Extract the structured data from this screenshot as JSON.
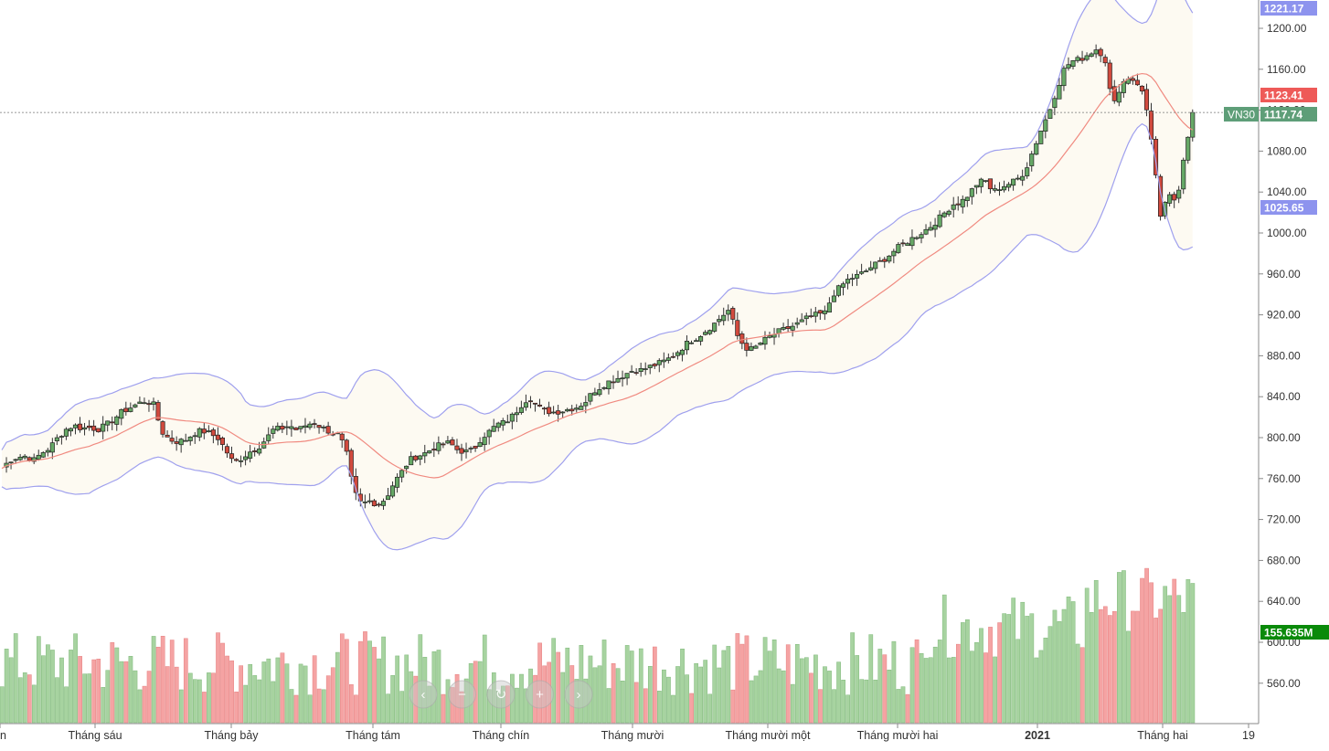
{
  "chart_data": {
    "type": "candlestick",
    "symbol": "VN30",
    "y_ticks": [
      "1200.00",
      "1160.00",
      "1120.00",
      "1080.00",
      "1040.00",
      "1000.00",
      "960.00",
      "920.00",
      "880.00",
      "840.00",
      "800.00",
      "760.00",
      "720.00",
      "680.00",
      "640.00",
      "600.00",
      "560.00"
    ],
    "y_range": [
      526,
      1231
    ],
    "x_labels": [
      "n",
      "Tháng sáu",
      "Tháng bảy",
      "Tháng tám",
      "Tháng chín",
      "Tháng mười",
      "Tháng mười một",
      "Tháng mười hai",
      "2021",
      "Tháng hai",
      "19"
    ],
    "last_price": 1117.74,
    "price_labels": {
      "bb_upper": "1221.17",
      "sma": "1123.41",
      "last": "1117.74",
      "bb_lower": "1025.65",
      "volume": "155.635M"
    },
    "colors": {
      "up": "#2e7d32",
      "down": "#c62828",
      "up_body": "#66a866",
      "down_body": "#d14a3e",
      "vol_up": "#a7d3a0",
      "vol_down": "#f5a3a3",
      "bb_line": "#9fa0ee",
      "sma_line": "#f08a80",
      "band_fill": "#fdfaf2",
      "label_blue": "#8d93ee",
      "label_red": "#ee5a58",
      "label_green_dark": "#0a8a0a",
      "label_vn30": "#5e9e78"
    },
    "ohlc_close_path": [
      [
        0,
        770
      ],
      [
        5,
        778
      ],
      [
        10,
        781
      ],
      [
        15,
        782
      ],
      [
        20,
        778
      ],
      [
        25,
        785
      ],
      [
        30,
        790
      ],
      [
        35,
        800
      ],
      [
        40,
        808
      ],
      [
        45,
        812
      ],
      [
        50,
        809
      ],
      [
        55,
        810
      ],
      [
        60,
        808
      ],
      [
        65,
        812
      ],
      [
        70,
        818
      ],
      [
        75,
        825
      ],
      [
        80,
        829
      ],
      [
        85,
        833
      ],
      [
        90,
        836
      ],
      [
        95,
        832
      ],
      [
        100,
        806
      ],
      [
        105,
        798
      ],
      [
        110,
        796
      ],
      [
        115,
        798
      ],
      [
        120,
        804
      ],
      [
        125,
        807
      ],
      [
        130,
        804
      ],
      [
        135,
        800
      ],
      [
        140,
        788
      ],
      [
        145,
        775
      ],
      [
        150,
        780
      ],
      [
        155,
        786
      ],
      [
        160,
        790
      ],
      [
        165,
        798
      ],
      [
        170,
        808
      ],
      [
        175,
        809
      ],
      [
        180,
        812
      ],
      [
        185,
        807
      ],
      [
        190,
        812
      ],
      [
        195,
        815
      ],
      [
        200,
        810
      ],
      [
        205,
        806
      ],
      [
        210,
        803
      ],
      [
        215,
        790
      ],
      [
        220,
        748
      ],
      [
        225,
        735
      ],
      [
        230,
        738
      ],
      [
        235,
        735
      ],
      [
        240,
        740
      ],
      [
        245,
        755
      ],
      [
        250,
        766
      ],
      [
        255,
        778
      ],
      [
        260,
        782
      ],
      [
        265,
        785
      ],
      [
        270,
        790
      ],
      [
        275,
        793
      ],
      [
        280,
        795
      ],
      [
        285,
        788
      ],
      [
        290,
        786
      ],
      [
        295,
        788
      ],
      [
        300,
        800
      ],
      [
        305,
        806
      ],
      [
        310,
        813
      ],
      [
        315,
        815
      ],
      [
        320,
        822
      ],
      [
        325,
        832
      ],
      [
        330,
        840
      ],
      [
        335,
        830
      ],
      [
        340,
        826
      ],
      [
        345,
        825
      ],
      [
        350,
        826
      ],
      [
        355,
        828
      ],
      [
        360,
        830
      ],
      [
        365,
        835
      ],
      [
        370,
        845
      ],
      [
        375,
        850
      ],
      [
        380,
        855
      ],
      [
        385,
        858
      ],
      [
        390,
        862
      ],
      [
        395,
        866
      ],
      [
        400,
        866
      ],
      [
        405,
        869
      ],
      [
        410,
        872
      ],
      [
        415,
        875
      ],
      [
        420,
        880
      ],
      [
        425,
        887
      ],
      [
        430,
        894
      ],
      [
        435,
        898
      ],
      [
        440,
        904
      ],
      [
        445,
        910
      ],
      [
        450,
        918
      ],
      [
        455,
        925
      ],
      [
        460,
        900
      ],
      [
        465,
        888
      ],
      [
        470,
        886
      ],
      [
        475,
        893
      ],
      [
        480,
        898
      ],
      [
        485,
        903
      ],
      [
        490,
        906
      ],
      [
        495,
        909
      ],
      [
        500,
        913
      ],
      [
        505,
        918
      ],
      [
        510,
        920
      ],
      [
        515,
        922
      ],
      [
        520,
        940
      ],
      [
        525,
        948
      ],
      [
        530,
        955
      ],
      [
        535,
        958
      ],
      [
        540,
        962
      ],
      [
        545,
        968
      ],
      [
        550,
        972
      ],
      [
        555,
        978
      ],
      [
        560,
        985
      ],
      [
        565,
        990
      ],
      [
        570,
        995
      ],
      [
        575,
        1000
      ],
      [
        580,
        1005
      ],
      [
        585,
        1012
      ],
      [
        590,
        1020
      ],
      [
        595,
        1028
      ],
      [
        600,
        1030
      ],
      [
        605,
        1038
      ],
      [
        610,
        1048
      ],
      [
        615,
        1052
      ],
      [
        620,
        1040
      ],
      [
        625,
        1045
      ],
      [
        630,
        1048
      ],
      [
        635,
        1052
      ],
      [
        640,
        1060
      ],
      [
        645,
        1080
      ],
      [
        650,
        1100
      ],
      [
        655,
        1118
      ],
      [
        660,
        1140
      ],
      [
        665,
        1162
      ],
      [
        670,
        1168
      ],
      [
        675,
        1170
      ],
      [
        680,
        1175
      ],
      [
        685,
        1180
      ],
      [
        690,
        1172
      ],
      [
        695,
        1122
      ],
      [
        700,
        1145
      ],
      [
        705,
        1152
      ],
      [
        710,
        1148
      ],
      [
        715,
        1132
      ],
      [
        720,
        1085
      ],
      [
        725,
        1012
      ],
      [
        730,
        1040
      ],
      [
        735,
        1025
      ],
      [
        740,
        1080
      ],
      [
        745,
        1117.74
      ]
    ]
  },
  "nav": {
    "buttons": [
      "‹",
      "−",
      "↻",
      "+",
      "›"
    ]
  }
}
